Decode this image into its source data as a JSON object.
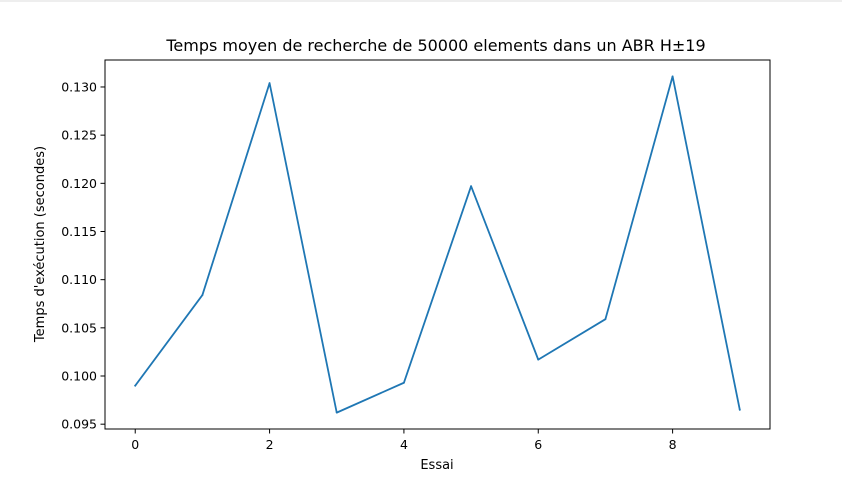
{
  "chart_data": {
    "type": "line",
    "title": "Temps moyen de recherche de 50000 elements dans un ABR H±19",
    "xlabel": "Essai",
    "ylabel": "Temps d'exécution (secondes)",
    "x": [
      0,
      1,
      2,
      3,
      4,
      5,
      6,
      7,
      8,
      9
    ],
    "series": [
      {
        "values": [
          0.099,
          0.1084,
          0.1304,
          0.0962,
          0.0993,
          0.1197,
          0.1017,
          0.1059,
          0.1311,
          0.0965
        ],
        "color": "#1f77b4"
      }
    ],
    "xlim": [
      -0.45,
      9.45
    ],
    "ylim": [
      0.0945,
      0.1328
    ],
    "xticks": [
      0,
      2,
      4,
      6,
      8
    ],
    "xtick_labels": [
      "0",
      "2",
      "4",
      "6",
      "8"
    ],
    "yticks": [
      0.095,
      0.1,
      0.105,
      0.11,
      0.115,
      0.12,
      0.125,
      0.13
    ],
    "ytick_labels": [
      "0.095",
      "0.100",
      "0.105",
      "0.110",
      "0.115",
      "0.120",
      "0.125",
      "0.130"
    ],
    "grid": false,
    "legend": false
  }
}
